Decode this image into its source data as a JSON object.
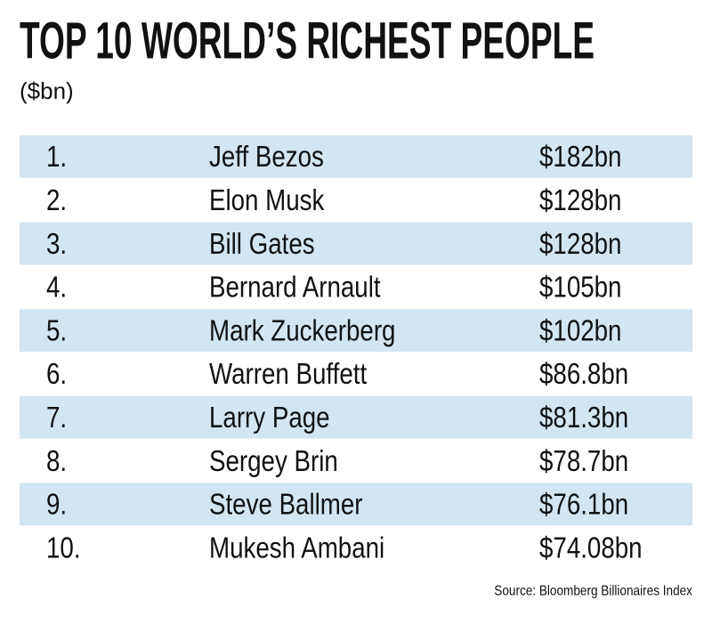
{
  "header": {
    "title": "TOP 10 WORLD’S RICHEST PEOPLE",
    "subtitle": "($bn)"
  },
  "table": {
    "rows": [
      [
        "1.",
        "Jeff Bezos",
        "$182bn"
      ],
      [
        "2.",
        "Elon Musk",
        "$128bn"
      ],
      [
        "3.",
        "Bill Gates",
        "$128bn"
      ],
      [
        "4.",
        "Bernard Arnault",
        "$105bn"
      ],
      [
        "5.",
        "Mark Zuckerberg",
        "$102bn"
      ],
      [
        "6.",
        "Warren Buffett",
        "$86.8bn"
      ],
      [
        "7.",
        "Larry Page",
        "$81.3bn"
      ],
      [
        "8.",
        "Sergey Brin",
        "$78.7bn"
      ],
      [
        "9.",
        "Steve Ballmer",
        "$76.1bn"
      ],
      [
        "10.",
        "Mukesh Ambani",
        "$74.08bn"
      ]
    ]
  },
  "footer": {
    "source": "Source: Bloomberg Billionaires Index"
  }
}
